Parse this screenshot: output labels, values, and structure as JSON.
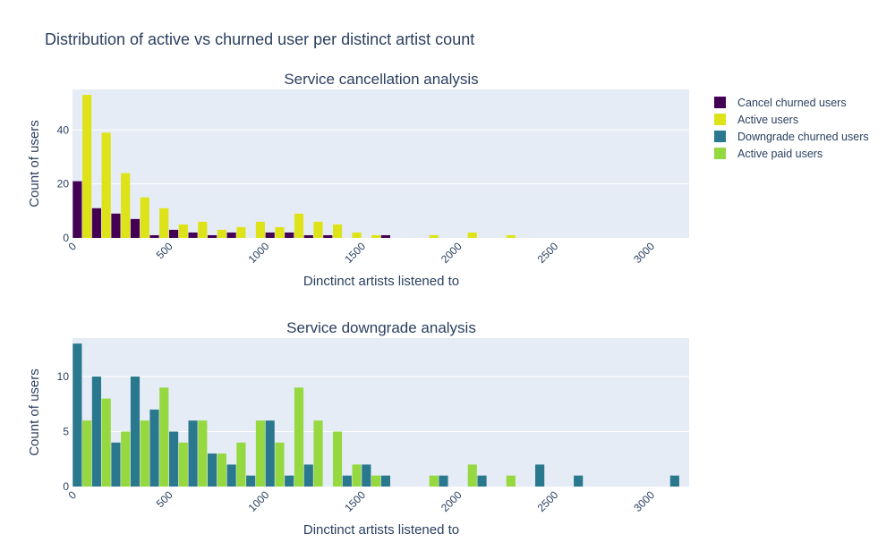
{
  "title": "Distribution of active vs churned user per distinct artist count",
  "legend": {
    "placement": "top-right",
    "items": [
      {
        "label": "Cancel churned users",
        "color": "#440154"
      },
      {
        "label": "Active users",
        "color": "#dde318"
      },
      {
        "label": "Downgrade churned users",
        "color": "#2a788e"
      },
      {
        "label": "Active paid users",
        "color": "#95d840"
      }
    ]
  },
  "chart_data": [
    {
      "type": "bar",
      "title": "Service cancellation analysis",
      "xlabel": "Dinctinct artists listened to",
      "ylabel": "Count of users",
      "xlim": [
        0,
        3200
      ],
      "ylim": [
        0,
        55
      ],
      "xticks": [
        0,
        500,
        1000,
        1500,
        2000,
        2500,
        3000
      ],
      "yticks": [
        0,
        20,
        40
      ],
      "bin_width": 100,
      "grid": true,
      "series": [
        {
          "name": "Cancel churned users",
          "color": "#440154",
          "x": [
            0,
            100,
            200,
            300,
            400,
            500,
            600,
            700,
            800,
            900,
            1000,
            1100,
            1200,
            1300,
            1400,
            1500,
            1600
          ],
          "values": [
            21,
            11,
            9,
            7,
            1,
            3,
            2,
            1,
            2,
            0,
            2,
            2,
            1,
            1,
            0,
            0,
            1
          ]
        },
        {
          "name": "Active users",
          "color": "#dde318",
          "x": [
            0,
            100,
            200,
            300,
            400,
            500,
            600,
            700,
            800,
            900,
            1000,
            1100,
            1200,
            1300,
            1400,
            1500,
            1800,
            2000,
            2200
          ],
          "values": [
            53,
            39,
            24,
            15,
            11,
            5,
            6,
            3,
            4,
            6,
            4,
            9,
            6,
            5,
            2,
            1,
            1,
            2,
            1
          ]
        }
      ]
    },
    {
      "type": "bar",
      "title": "Service downgrade analysis",
      "xlabel": "Dinctinct artists listened to",
      "ylabel": "Count of users",
      "xlim": [
        0,
        3200
      ],
      "ylim": [
        0,
        13.5
      ],
      "xticks": [
        0,
        500,
        1000,
        1500,
        2000,
        2500,
        3000
      ],
      "yticks": [
        0,
        5,
        10
      ],
      "bin_width": 100,
      "grid": true,
      "series": [
        {
          "name": "Downgrade churned users",
          "color": "#2a788e",
          "x": [
            0,
            100,
            200,
            300,
            400,
            500,
            600,
            700,
            800,
            900,
            1000,
            1100,
            1200,
            1300,
            1400,
            1500,
            1600,
            1900,
            2100,
            2400,
            2600,
            3100
          ],
          "values": [
            13,
            10,
            4,
            10,
            7,
            5,
            6,
            3,
            2,
            1,
            6,
            1,
            2,
            0,
            1,
            2,
            1,
            1,
            1,
            2,
            1,
            1
          ]
        },
        {
          "name": "Active paid users",
          "color": "#95d840",
          "x": [
            0,
            100,
            200,
            300,
            400,
            500,
            600,
            700,
            800,
            900,
            1000,
            1100,
            1200,
            1300,
            1400,
            1500,
            1800,
            2000,
            2200
          ],
          "values": [
            6,
            8,
            5,
            6,
            9,
            4,
            6,
            3,
            4,
            6,
            4,
            9,
            6,
            5,
            2,
            1,
            1,
            2,
            1
          ]
        }
      ]
    }
  ]
}
